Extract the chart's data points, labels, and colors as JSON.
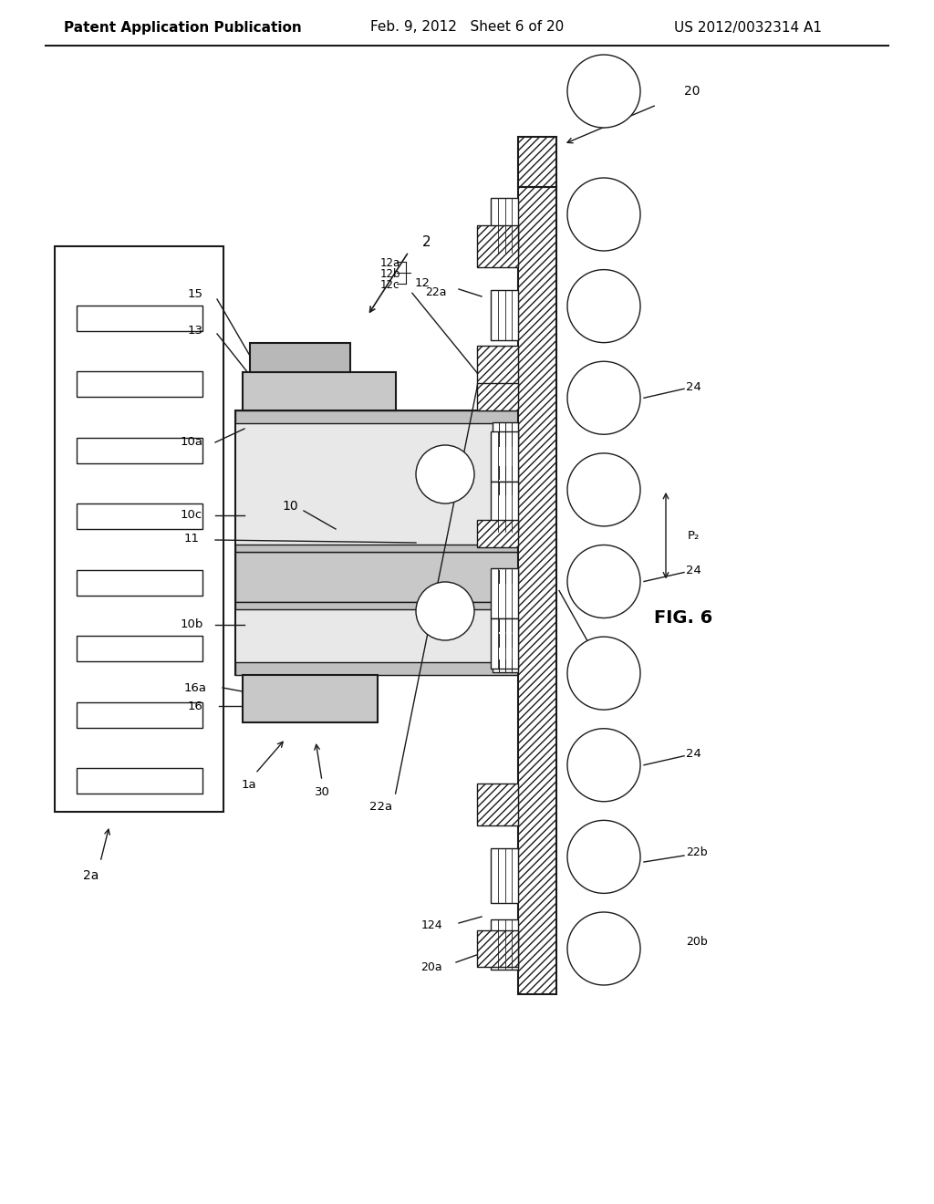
{
  "header_left": "Patent Application Publication",
  "header_center": "Feb. 9, 2012   Sheet 6 of 20",
  "header_right": "US 2012/0032314 A1",
  "fig_label": "FIG. 6",
  "background": "#ffffff",
  "line_color": "#1a1a1a",
  "light_gray": "#d8d8d8",
  "medium_gray": "#aaaaaa"
}
